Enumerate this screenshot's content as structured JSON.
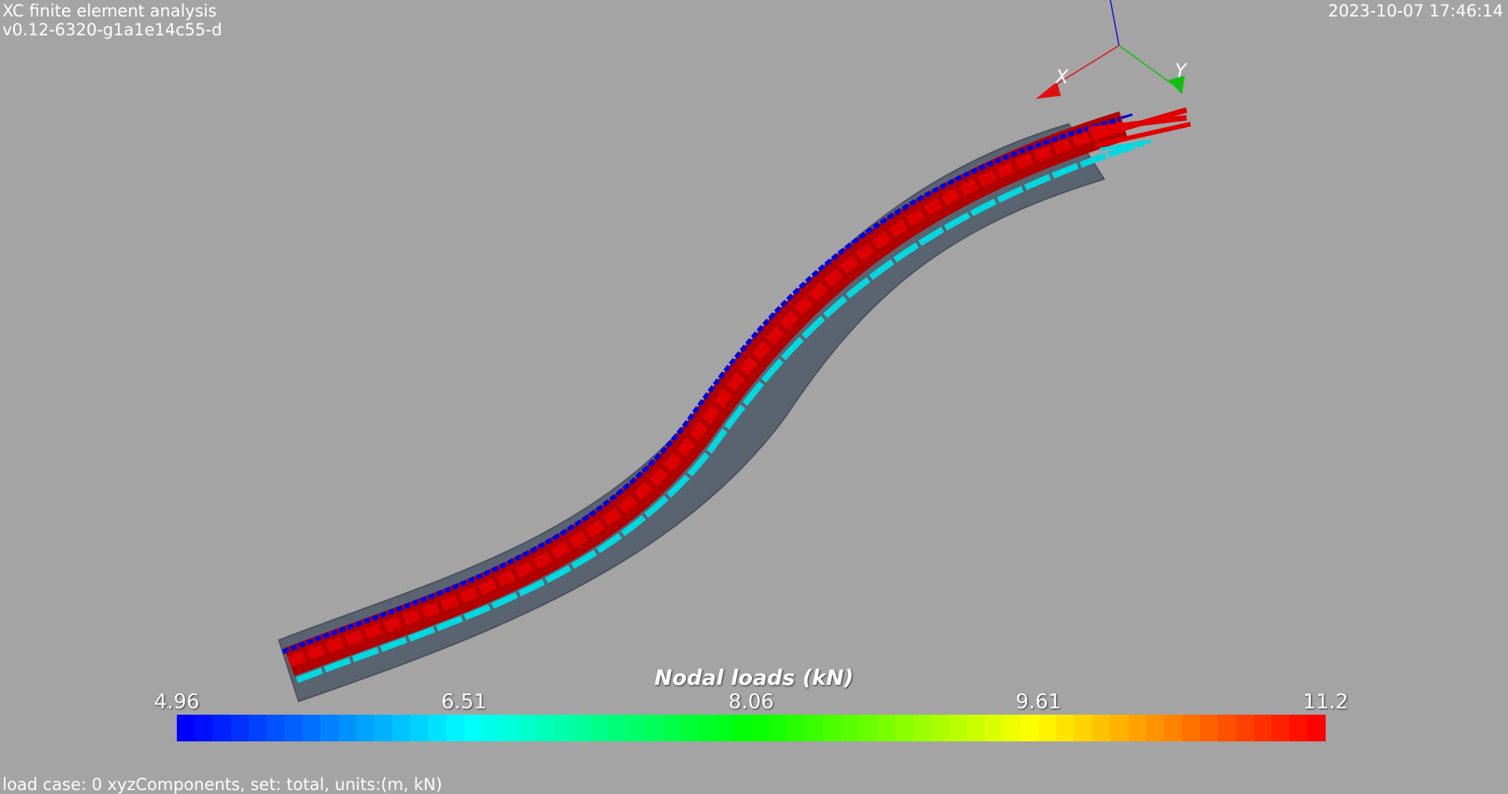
{
  "header": {
    "app_title": "XC finite element analysis",
    "version": "v0.12-6320-g1a1e14c55-d",
    "timestamp": "2023-10-07 17:46:14"
  },
  "axes_triad": {
    "x_label": "X",
    "y_label": "Y",
    "x_color": "#e01010",
    "y_color": "#10c010",
    "z_color": "#1010e0"
  },
  "scalar_bar": {
    "title": "Nodal loads (kN)",
    "min": 4.96,
    "max": 11.2,
    "tick_labels": [
      "4.96",
      "6.51",
      "8.06",
      "9.61",
      "11.2"
    ],
    "colormap": "blue-cyan-green-yellow-red",
    "segments": 64
  },
  "colors": {
    "background": "#a4a4a4",
    "beam_surface": "#5a6370",
    "load_max": "#dd0000",
    "load_mid": "#00d8e0",
    "load_min": "#0000dd"
  },
  "footer": {
    "text": "load case: 0 xyzComponents, set: total, units:(m, kN)"
  }
}
